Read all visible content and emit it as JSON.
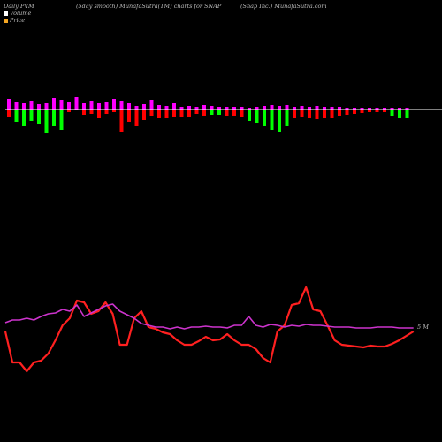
{
  "header": {
    "left": "Daily PVM",
    "center": "(5day smooth) MunafaSutra(TM) charts for SNAP",
    "right": "(Snap Inc.) MunafaSutra.com"
  },
  "legend": [
    {
      "label": "Volume",
      "color": "#ffffff"
    },
    {
      "label": "Price",
      "color": "#f5a623"
    }
  ],
  "colors": {
    "background": "#000000",
    "volume_up": "#ff0000",
    "volume_down": "#00ff00",
    "volume_neutral": "#ff00ff",
    "price_line": "#ff2020",
    "pvm_line": "#cc33cc",
    "baseline": "#ffffff"
  },
  "chart_data": {
    "type": "line",
    "end_label": "5 M",
    "volume_bars": [
      {
        "up": 1.2,
        "down": 0.8
      },
      {
        "up": 0.9,
        "down": 1.4
      },
      {
        "up": 0.7,
        "down": 1.8
      },
      {
        "up": 1.0,
        "down": 1.3
      },
      {
        "up": 0.6,
        "down": 1.6
      },
      {
        "up": 0.8,
        "down": 2.6,
        "color": "g"
      },
      {
        "up": 1.3,
        "down": 1.9
      },
      {
        "up": 1.1,
        "down": 2.3
      },
      {
        "up": 0.9,
        "down": 0.3
      },
      {
        "up": 1.4,
        "down": 0.0
      },
      {
        "up": 0.8,
        "down": 0.6
      },
      {
        "up": 1.0,
        "down": 0.5
      },
      {
        "up": 0.8,
        "down": 1.0
      },
      {
        "up": 0.9,
        "down": 0.5
      },
      {
        "up": 1.2,
        "down": 0.3
      },
      {
        "up": 1.0,
        "down": 2.5,
        "color": "r"
      },
      {
        "up": 0.7,
        "down": 1.4
      },
      {
        "up": 0.4,
        "down": 1.8
      },
      {
        "up": 0.6,
        "down": 1.2
      },
      {
        "up": 1.1,
        "down": 0.7
      },
      {
        "up": 0.5,
        "down": 0.9
      },
      {
        "up": 0.4,
        "down": 0.9
      },
      {
        "up": 0.7,
        "down": 0.8
      },
      {
        "up": 0.3,
        "down": 0.8
      },
      {
        "up": 0.4,
        "down": 0.8
      },
      {
        "up": 0.3,
        "down": 0.5
      },
      {
        "up": 0.5,
        "down": 0.7
      },
      {
        "up": 0.4,
        "down": 0.6
      },
      {
        "up": 0.3,
        "down": 0.6
      },
      {
        "up": 0.3,
        "down": 0.7
      },
      {
        "up": 0.3,
        "down": 0.7
      },
      {
        "up": 0.3,
        "down": 0.8
      },
      {
        "up": 0.2,
        "down": 1.3
      },
      {
        "up": 0.3,
        "down": 1.5
      },
      {
        "up": 0.4,
        "down": 1.9
      },
      {
        "up": 0.5,
        "down": 2.3
      },
      {
        "up": 0.4,
        "down": 2.5
      },
      {
        "up": 0.5,
        "down": 1.9
      },
      {
        "up": 0.3,
        "down": 1.0
      },
      {
        "up": 0.4,
        "down": 0.8
      },
      {
        "up": 0.3,
        "down": 0.9
      },
      {
        "up": 0.4,
        "down": 1.1
      },
      {
        "up": 0.3,
        "down": 1.0
      },
      {
        "up": 0.3,
        "down": 0.9
      },
      {
        "up": 0.3,
        "down": 0.7
      },
      {
        "up": 0.2,
        "down": 0.6
      },
      {
        "up": 0.2,
        "down": 0.5
      },
      {
        "up": 0.2,
        "down": 0.4
      },
      {
        "up": 0.2,
        "down": 0.3
      },
      {
        "up": 0.2,
        "down": 0.3
      },
      {
        "up": 0.2,
        "down": 0.3
      },
      {
        "up": 0.2,
        "down": 0.7
      },
      {
        "up": 0.2,
        "down": 0.9
      },
      {
        "up": 0.2,
        "down": 0.9
      }
    ],
    "volume_signs": [
      "r",
      "g",
      "g",
      "g",
      "g",
      "g",
      "g",
      "g",
      "r",
      "r",
      "r",
      "r",
      "r",
      "r",
      "r",
      "r",
      "r",
      "r",
      "r",
      "r",
      "r",
      "r",
      "r",
      "r",
      "r",
      "r",
      "r",
      "g",
      "g",
      "r",
      "r",
      "r",
      "g",
      "g",
      "g",
      "g",
      "g",
      "g",
      "r",
      "r",
      "r",
      "r",
      "r",
      "r",
      "r",
      "r",
      "r",
      "r",
      "r",
      "r",
      "r",
      "g",
      "g",
      "g"
    ],
    "series": [
      {
        "name": "Price",
        "values": [
          375,
          410,
          410,
          420,
          410,
          408,
          400,
          385,
          368,
          360,
          340,
          342,
          355,
          352,
          342,
          355,
          390,
          390,
          360,
          352,
          370,
          372,
          376,
          378,
          385,
          390,
          390,
          386,
          381,
          385,
          384,
          378,
          385,
          390,
          390,
          395,
          405,
          410,
          375,
          368,
          345,
          343,
          325,
          350,
          352,
          368,
          385,
          390,
          391,
          392,
          393,
          391,
          392,
          392,
          389,
          385,
          380,
          375
        ]
      },
      {
        "name": "PVM",
        "values": [
          365,
          362,
          362,
          360,
          362,
          358,
          355,
          354,
          350,
          352,
          345,
          358,
          354,
          350,
          346,
          344,
          352,
          356,
          360,
          366,
          368,
          370,
          370,
          372,
          370,
          372,
          370,
          370,
          369,
          370,
          370,
          371,
          368,
          368,
          358,
          368,
          370,
          367,
          368,
          370,
          368,
          369,
          367,
          368,
          368,
          369,
          370,
          370,
          370,
          371,
          371,
          371,
          370,
          370,
          370,
          371,
          371,
          371
        ]
      }
    ]
  }
}
